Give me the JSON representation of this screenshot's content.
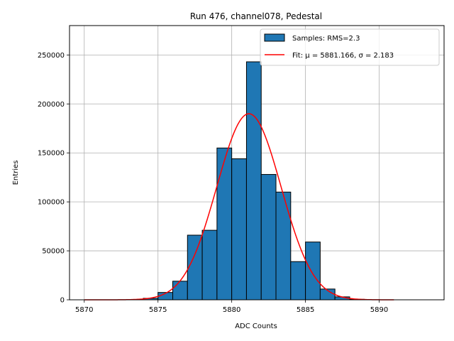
{
  "chart_data": {
    "type": "bar",
    "title": "Run 476, channel078, Pedestal",
    "xlabel": "ADC Counts",
    "ylabel": "Entries",
    "xlim": [
      5869,
      5894.4
    ],
    "ylim": [
      0,
      280000
    ],
    "xticks": [
      5870,
      5875,
      5880,
      5885,
      5890
    ],
    "yticks": [
      0,
      50000,
      100000,
      150000,
      200000,
      250000
    ],
    "grid": true,
    "legend_position": "top-right",
    "bin_width": 1,
    "bars": [
      {
        "x": 5874,
        "value": 1500
      },
      {
        "x": 5875,
        "value": 7500
      },
      {
        "x": 5876,
        "value": 19000
      },
      {
        "x": 5877,
        "value": 66000
      },
      {
        "x": 5878,
        "value": 71000
      },
      {
        "x": 5879,
        "value": 155000
      },
      {
        "x": 5880,
        "value": 144000
      },
      {
        "x": 5881,
        "value": 243000
      },
      {
        "x": 5882,
        "value": 128000
      },
      {
        "x": 5883,
        "value": 110000
      },
      {
        "x": 5884,
        "value": 39000
      },
      {
        "x": 5885,
        "value": 59000
      },
      {
        "x": 5886,
        "value": 11000
      },
      {
        "x": 5887,
        "value": 3000
      },
      {
        "x": 5888,
        "value": 500
      }
    ],
    "fit": {
      "mu": 5881.166,
      "sigma": 2.183,
      "amplitude": 190000,
      "x_range": [
        5870,
        5891
      ]
    },
    "legend": [
      {
        "label": "Samples: RMS=2.3",
        "kind": "patch",
        "color": "#1f77b4"
      },
      {
        "label": "Fit: μ = 5881.166, σ = 2.183",
        "kind": "line",
        "color": "#ff0000"
      }
    ],
    "colors": {
      "bar": "#1f77b4",
      "bar_edge": "#000000",
      "fit": "#ff0000",
      "grid": "#b0b0b0"
    }
  }
}
